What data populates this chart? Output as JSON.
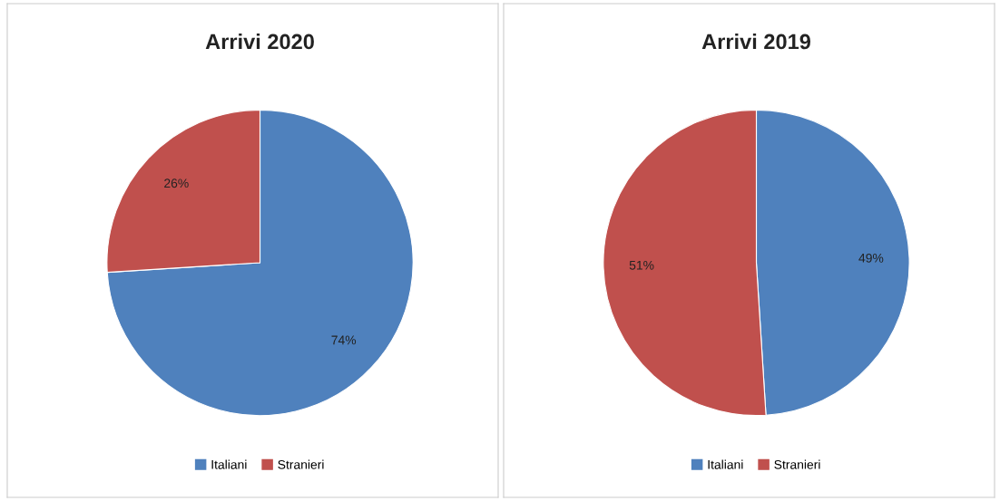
{
  "chart_data": [
    {
      "type": "pie",
      "title": "Arrivi 2020",
      "categories": [
        "Italiani",
        "Stranieri"
      ],
      "values": [
        74,
        26
      ],
      "colors": [
        "#4f81bd",
        "#c0504d"
      ],
      "value_labels": [
        "74%",
        "26%"
      ],
      "legend": "bottom"
    },
    {
      "type": "pie",
      "title": "Arrivi 2019",
      "categories": [
        "Italiani",
        "Stranieri"
      ],
      "values": [
        49,
        51
      ],
      "colors": [
        "#4f81bd",
        "#c0504d"
      ],
      "value_labels": [
        "49%",
        "51%"
      ],
      "legend": "bottom"
    }
  ]
}
